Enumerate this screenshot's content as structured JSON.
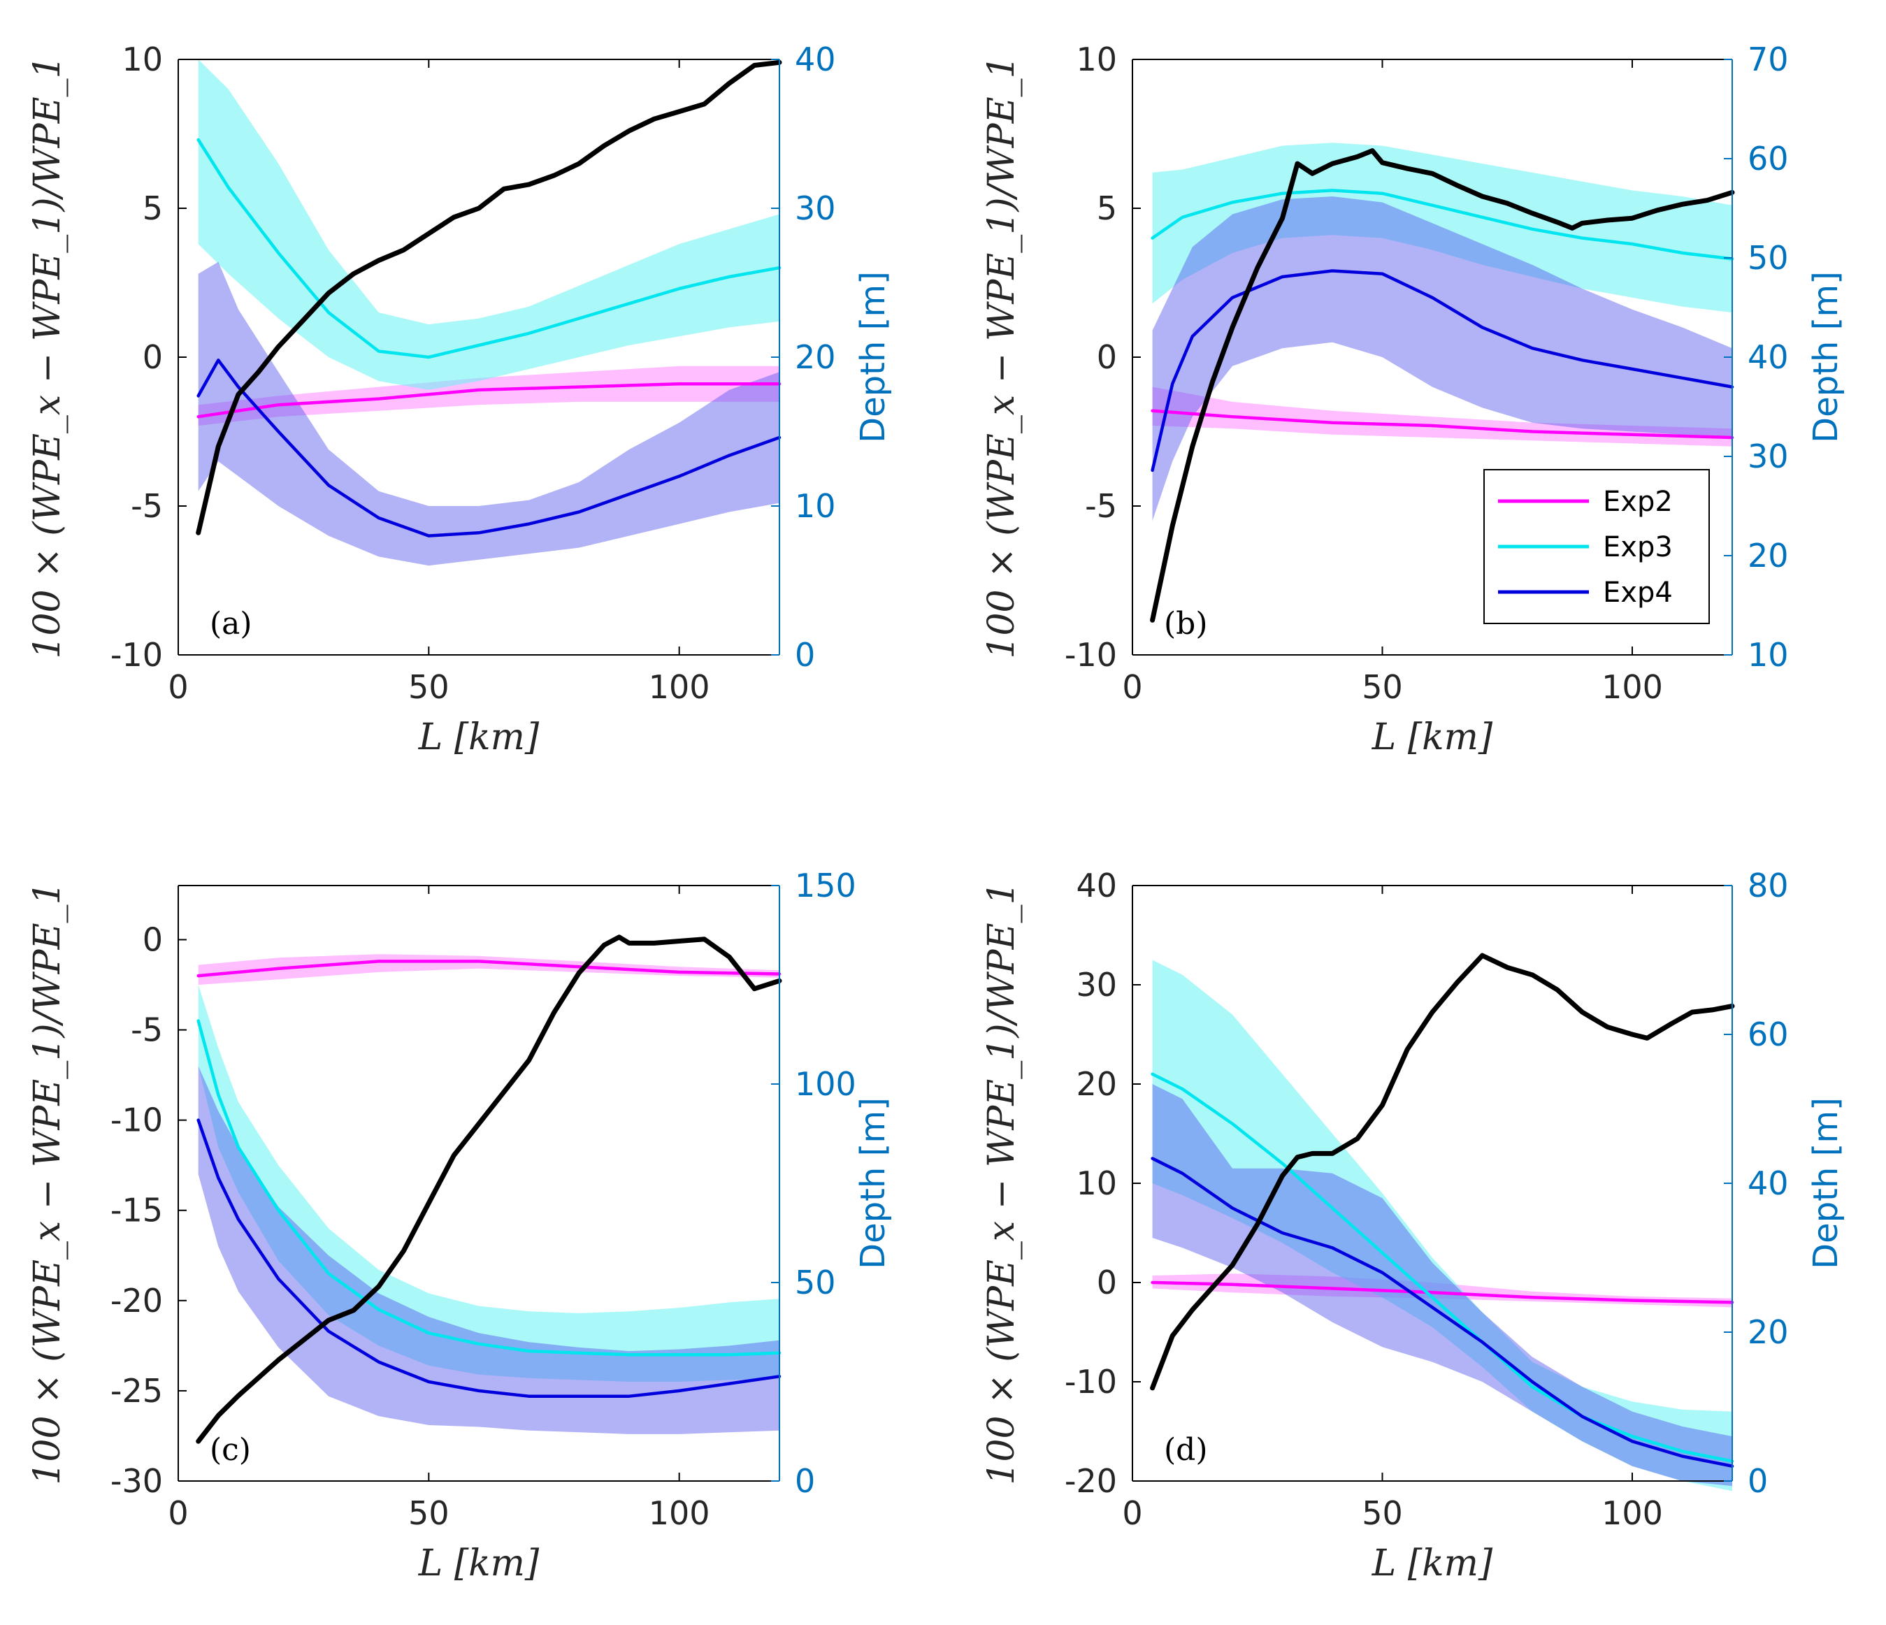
{
  "colors": {
    "exp2": "#ff00ff",
    "exp2_band": "#ff88ff",
    "exp3": "#00e5ee",
    "exp3_band": "#66f2f2",
    "exp4": "#0000dd",
    "exp4_band": "#5555ee",
    "depth": "#000000",
    "right_axis": "#0072bd"
  },
  "chart_data": [
    {
      "type": "line",
      "panel": "(a)",
      "xlabel": "L [km]",
      "ylabel": "100 × (WPE_x − WPE_1)/WPE_1",
      "y2label": "Depth [m]",
      "xlim": [
        0,
        120
      ],
      "ylim": [
        -10,
        10
      ],
      "y2lim": [
        0,
        40
      ],
      "xticks": [
        "0",
        "50",
        "100"
      ],
      "yticks": [
        "-10",
        "-5",
        "0",
        "5",
        "10"
      ],
      "y2ticks": [
        "0",
        "10",
        "20",
        "30",
        "40"
      ],
      "series": [
        {
          "name": "Exp2",
          "x": [
            4,
            20,
            40,
            60,
            80,
            100,
            120
          ],
          "y": [
            -2.0,
            -1.6,
            -1.4,
            -1.1,
            -1.0,
            -0.9,
            -0.9
          ],
          "lo": [
            -2.3,
            -2.0,
            -1.8,
            -1.6,
            -1.5,
            -1.5,
            -1.5
          ],
          "hi": [
            -1.6,
            -1.3,
            -1.0,
            -0.7,
            -0.5,
            -0.3,
            -0.3
          ]
        },
        {
          "name": "Exp3",
          "x": [
            4,
            10,
            20,
            30,
            40,
            50,
            60,
            70,
            80,
            90,
            100,
            110,
            120
          ],
          "y": [
            7.3,
            5.7,
            3.5,
            1.5,
            0.2,
            0.0,
            0.4,
            0.8,
            1.3,
            1.8,
            2.3,
            2.7,
            3.0
          ],
          "lo": [
            3.8,
            2.8,
            1.3,
            0.0,
            -0.8,
            -1.1,
            -0.8,
            -0.4,
            0.0,
            0.4,
            0.7,
            1.0,
            1.2
          ],
          "hi": [
            10.0,
            9.0,
            6.5,
            3.6,
            1.5,
            1.1,
            1.3,
            1.7,
            2.4,
            3.1,
            3.8,
            4.3,
            4.8
          ]
        },
        {
          "name": "Exp4",
          "x": [
            4,
            8,
            12,
            20,
            30,
            40,
            50,
            60,
            70,
            80,
            90,
            100,
            110,
            120
          ],
          "y": [
            -1.3,
            -0.1,
            -1.0,
            -2.5,
            -4.3,
            -5.4,
            -6.0,
            -5.9,
            -5.6,
            -5.2,
            -4.6,
            -4.0,
            -3.3,
            -2.7
          ],
          "lo": [
            -4.5,
            -3.5,
            -4.0,
            -5.0,
            -6.0,
            -6.7,
            -7.0,
            -6.8,
            -6.6,
            -6.4,
            -6.0,
            -5.6,
            -5.2,
            -4.9
          ],
          "hi": [
            2.8,
            3.2,
            1.6,
            -0.5,
            -3.1,
            -4.5,
            -5.0,
            -5.0,
            -4.8,
            -4.2,
            -3.1,
            -2.2,
            -1.1,
            -0.5
          ]
        },
        {
          "name": "Depth",
          "axis": "right",
          "x": [
            4,
            8,
            12,
            16,
            20,
            25,
            30,
            35,
            40,
            45,
            50,
            55,
            60,
            65,
            70,
            75,
            80,
            85,
            90,
            95,
            100,
            105,
            110,
            115,
            120
          ],
          "y": [
            8.2,
            14,
            17.5,
            19,
            20.7,
            22.5,
            24.3,
            25.6,
            26.5,
            27.2,
            28.3,
            29.4,
            30,
            31.3,
            31.6,
            32.2,
            33,
            34.2,
            35.2,
            36,
            36.5,
            37,
            38.4,
            39.6,
            39.8
          ]
        }
      ]
    },
    {
      "type": "line",
      "panel": "(b)",
      "xlabel": "L [km]",
      "ylabel": "100 × (WPE_x − WPE_1)/WPE_1",
      "y2label": "Depth [m]",
      "xlim": [
        0,
        120
      ],
      "ylim": [
        -10,
        10
      ],
      "y2lim": [
        10,
        70
      ],
      "xticks": [
        "0",
        "50",
        "100"
      ],
      "yticks": [
        "-10",
        "-5",
        "0",
        "5",
        "10"
      ],
      "y2ticks": [
        "10",
        "20",
        "30",
        "40",
        "50",
        "60",
        "70"
      ],
      "legend": [
        "Exp2",
        "Exp3",
        "Exp4"
      ],
      "legend_position": "right, lower-middle",
      "series": [
        {
          "name": "Exp2",
          "x": [
            4,
            20,
            40,
            60,
            80,
            100,
            120
          ],
          "y": [
            -1.8,
            -2.0,
            -2.2,
            -2.3,
            -2.5,
            -2.6,
            -2.7
          ],
          "lo": [
            -2.3,
            -2.4,
            -2.6,
            -2.7,
            -2.8,
            -2.9,
            -3.0
          ],
          "hi": [
            -1.0,
            -1.5,
            -1.8,
            -2.0,
            -2.2,
            -2.3,
            -2.4
          ]
        },
        {
          "name": "Exp3",
          "x": [
            4,
            10,
            20,
            30,
            40,
            50,
            60,
            70,
            80,
            90,
            100,
            110,
            120
          ],
          "y": [
            4.0,
            4.7,
            5.2,
            5.5,
            5.6,
            5.5,
            5.1,
            4.7,
            4.3,
            4.0,
            3.8,
            3.5,
            3.3
          ],
          "lo": [
            1.8,
            2.6,
            3.5,
            4.0,
            4.1,
            4.0,
            3.6,
            3.1,
            2.7,
            2.3,
            2.0,
            1.7,
            1.5
          ],
          "hi": [
            6.2,
            6.3,
            6.7,
            7.1,
            7.2,
            7.1,
            6.8,
            6.5,
            6.2,
            5.9,
            5.6,
            5.4,
            5.1
          ]
        },
        {
          "name": "Exp4",
          "x": [
            4,
            8,
            12,
            20,
            30,
            40,
            50,
            60,
            70,
            80,
            90,
            100,
            110,
            120
          ],
          "y": [
            -3.8,
            -0.9,
            0.7,
            2.0,
            2.7,
            2.9,
            2.8,
            2.0,
            1.0,
            0.3,
            -0.1,
            -0.4,
            -0.7,
            -1.0
          ],
          "lo": [
            -5.5,
            -3.5,
            -2.0,
            -0.3,
            0.3,
            0.5,
            0.0,
            -1.0,
            -1.7,
            -2.2,
            -2.4,
            -2.5,
            -2.6,
            -2.7
          ],
          "hi": [
            0.9,
            2.3,
            3.7,
            4.8,
            5.3,
            5.4,
            5.2,
            4.5,
            3.8,
            3.1,
            2.3,
            1.6,
            1.0,
            0.3
          ]
        },
        {
          "name": "Depth",
          "axis": "right",
          "x": [
            4,
            8,
            12,
            16,
            20,
            25,
            30,
            33,
            36,
            40,
            45,
            48,
            50,
            55,
            60,
            65,
            70,
            75,
            80,
            85,
            88,
            90,
            95,
            100,
            105,
            110,
            115,
            120
          ],
          "y": [
            13.5,
            23,
            31,
            37.5,
            43,
            49,
            54,
            59.5,
            58.5,
            59.5,
            60.2,
            60.8,
            59.6,
            59,
            58.5,
            57.3,
            56.2,
            55.5,
            54.5,
            53.6,
            53,
            53.5,
            53.8,
            54,
            54.8,
            55.4,
            55.8,
            56.6
          ]
        }
      ]
    },
    {
      "type": "line",
      "panel": "(c)",
      "xlabel": "L [km]",
      "ylabel": "100 × (WPE_x − WPE_1)/WPE_1",
      "y2label": "Depth [m]",
      "xlim": [
        0,
        120
      ],
      "ylim": [
        -30,
        3
      ],
      "y2lim": [
        0,
        150
      ],
      "xticks": [
        "0",
        "50",
        "100"
      ],
      "yticks": [
        "-30",
        "-25",
        "-20",
        "-15",
        "-10",
        "-5",
        "0"
      ],
      "y2ticks": [
        "0",
        "50",
        "100",
        "150"
      ],
      "series": [
        {
          "name": "Exp2",
          "x": [
            4,
            20,
            40,
            60,
            80,
            100,
            120
          ],
          "y": [
            -2.0,
            -1.6,
            -1.2,
            -1.2,
            -1.5,
            -1.8,
            -1.9
          ],
          "lo": [
            -2.5,
            -2.2,
            -1.8,
            -1.6,
            -1.8,
            -2.0,
            -2.1
          ],
          "hi": [
            -1.4,
            -1.0,
            -0.8,
            -0.9,
            -1.2,
            -1.5,
            -1.7
          ]
        },
        {
          "name": "Exp3",
          "x": [
            4,
            8,
            12,
            20,
            30,
            40,
            50,
            60,
            70,
            80,
            90,
            100,
            110,
            120
          ],
          "y": [
            -4.5,
            -8.6,
            -11.5,
            -15.0,
            -18.5,
            -20.5,
            -21.8,
            -22.4,
            -22.8,
            -22.9,
            -23.0,
            -23.0,
            -23.0,
            -22.9
          ],
          "lo": [
            -7.0,
            -11.5,
            -14.0,
            -17.8,
            -20.8,
            -22.5,
            -23.6,
            -24.1,
            -24.3,
            -24.4,
            -24.5,
            -24.5,
            -24.4,
            -24.3
          ],
          "hi": [
            -2.5,
            -6.0,
            -9.0,
            -12.5,
            -16.0,
            -18.3,
            -19.6,
            -20.3,
            -20.6,
            -20.7,
            -20.6,
            -20.4,
            -20.1,
            -19.9
          ]
        },
        {
          "name": "Exp4",
          "x": [
            4,
            8,
            12,
            20,
            30,
            40,
            50,
            60,
            70,
            80,
            90,
            100,
            110,
            120
          ],
          "y": [
            -10.0,
            -13.2,
            -15.5,
            -18.8,
            -21.7,
            -23.4,
            -24.5,
            -25.0,
            -25.3,
            -25.3,
            -25.3,
            -25.0,
            -24.6,
            -24.2
          ],
          "lo": [
            -13.0,
            -17.0,
            -19.5,
            -22.6,
            -25.3,
            -26.4,
            -26.9,
            -27.0,
            -27.2,
            -27.3,
            -27.4,
            -27.4,
            -27.3,
            -27.2
          ],
          "hi": [
            -7.0,
            -9.5,
            -11.5,
            -14.8,
            -17.5,
            -19.6,
            -20.9,
            -21.8,
            -22.3,
            -22.6,
            -22.8,
            -22.7,
            -22.5,
            -22.2
          ]
        },
        {
          "name": "Depth",
          "axis": "right",
          "x": [
            4,
            8,
            12,
            16,
            20,
            25,
            30,
            35,
            40,
            45,
            50,
            55,
            60,
            65,
            70,
            75,
            80,
            85,
            88,
            90,
            95,
            100,
            105,
            110,
            115,
            120
          ],
          "y": [
            10,
            16.5,
            21.5,
            26,
            30.5,
            35.5,
            40.5,
            43,
            49,
            58,
            70,
            82,
            90,
            98,
            106,
            118,
            128,
            135,
            137,
            135.5,
            135.5,
            136,
            136.5,
            132,
            124,
            126
          ]
        }
      ]
    },
    {
      "type": "line",
      "panel": "(d)",
      "xlabel": "L [km]",
      "ylabel": "100 × (WPE_x − WPE_1)/WPE_1",
      "y2label": "Depth [m]",
      "xlim": [
        0,
        120
      ],
      "ylim": [
        -20,
        40
      ],
      "y2lim": [
        0,
        80
      ],
      "xticks": [
        "0",
        "50",
        "100"
      ],
      "yticks": [
        "-20",
        "-10",
        "0",
        "10",
        "20",
        "30",
        "40"
      ],
      "y2ticks": [
        "0",
        "20",
        "40",
        "60",
        "80"
      ],
      "series": [
        {
          "name": "Exp2",
          "x": [
            4,
            20,
            40,
            60,
            80,
            100,
            120
          ],
          "y": [
            0.0,
            -0.2,
            -0.6,
            -1.0,
            -1.5,
            -1.8,
            -2.0
          ],
          "lo": [
            -0.6,
            -1.0,
            -1.4,
            -1.6,
            -1.9,
            -2.2,
            -2.5
          ],
          "hi": [
            0.7,
            0.9,
            0.6,
            0.0,
            -0.9,
            -1.4,
            -1.6
          ]
        },
        {
          "name": "Exp3",
          "x": [
            4,
            10,
            20,
            30,
            40,
            50,
            60,
            70,
            80,
            90,
            100,
            110,
            120
          ],
          "y": [
            21.0,
            19.5,
            16.0,
            12.0,
            7.5,
            3.0,
            -1.5,
            -6.0,
            -10.5,
            -13.5,
            -15.5,
            -17.0,
            -18.0
          ],
          "lo": [
            10.0,
            8.8,
            6.5,
            4.0,
            1.0,
            -1.5,
            -4.5,
            -8.5,
            -13.0,
            -16.0,
            -18.5,
            -20.0,
            -21.0
          ],
          "hi": [
            32.5,
            31.0,
            27.0,
            21.0,
            15.0,
            9.0,
            2.5,
            -3.0,
            -8.0,
            -10.5,
            -12.0,
            -12.8,
            -13.0
          ]
        },
        {
          "name": "Exp4",
          "x": [
            4,
            10,
            20,
            30,
            40,
            50,
            60,
            70,
            80,
            90,
            100,
            110,
            120
          ],
          "y": [
            12.5,
            11.0,
            7.5,
            5.0,
            3.5,
            1.0,
            -2.5,
            -6.0,
            -10.0,
            -13.5,
            -16.0,
            -17.5,
            -18.5
          ],
          "lo": [
            4.5,
            3.5,
            1.5,
            -1.0,
            -4.0,
            -6.5,
            -8.0,
            -10.0,
            -13.0,
            -16.0,
            -18.5,
            -20.0,
            -20.5
          ],
          "hi": [
            20.0,
            18.5,
            11.5,
            11.5,
            11.0,
            8.5,
            2.0,
            -3.0,
            -7.5,
            -10.5,
            -13.0,
            -14.5,
            -15.5
          ]
        },
        {
          "name": "Depth",
          "axis": "right",
          "x": [
            4,
            8,
            12,
            16,
            20,
            25,
            30,
            33,
            36,
            40,
            45,
            50,
            55,
            60,
            65,
            70,
            75,
            80,
            85,
            90,
            95,
            100,
            103,
            108,
            112,
            116,
            120
          ],
          "y": [
            12.5,
            19.5,
            23,
            26,
            29,
            34.5,
            41,
            43.5,
            44,
            44,
            46,
            50.5,
            58,
            63,
            67,
            70.6,
            69,
            68,
            66,
            63,
            61,
            60,
            59.5,
            61.5,
            63,
            63.3,
            63.8
          ]
        }
      ]
    }
  ]
}
